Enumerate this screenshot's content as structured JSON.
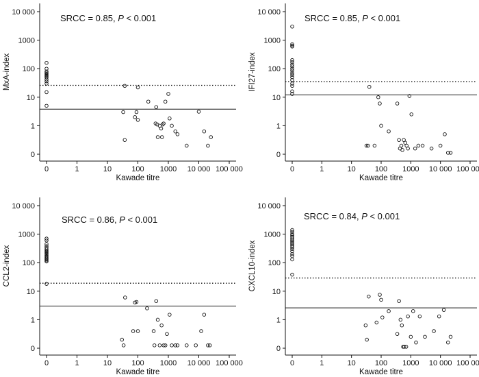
{
  "chart_data": [
    {
      "type": "scatter",
      "id": "mxa",
      "title": "",
      "xlabel": "Kawade titre",
      "ylabel": "MxA-index",
      "annotation": {
        "prefix": "SRCC = 0.85, ",
        "p_symbol": "P",
        "suffix": " < 0.001"
      },
      "x_ticks": [
        {
          "value": 0,
          "label": "0"
        },
        {
          "value": 1,
          "label": "1"
        },
        {
          "value": 10,
          "label": "10"
        },
        {
          "value": 100,
          "label": "100"
        },
        {
          "value": 1000,
          "label": "1000"
        },
        {
          "value": 10000,
          "label": "10 000"
        },
        {
          "value": 100000,
          "label": "100 000"
        }
      ],
      "y_ticks": [
        {
          "value": 0,
          "label": "0"
        },
        {
          "value": 1,
          "label": "1"
        },
        {
          "value": 10,
          "label": "10"
        },
        {
          "value": 100,
          "label": "100"
        },
        {
          "value": 1000,
          "label": "1000"
        },
        {
          "value": 10000,
          "label": "10 000"
        }
      ],
      "xlim": [
        0,
        100000
      ],
      "ylim": [
        0,
        10000
      ],
      "reference_lines": [
        {
          "style": "dotted",
          "y": 26
        },
        {
          "style": "solid",
          "y": 3.8
        }
      ],
      "points": [
        {
          "x": 0,
          "y": 160
        },
        {
          "x": 0,
          "y": 100
        },
        {
          "x": 0,
          "y": 80
        },
        {
          "x": 0,
          "y": 72
        },
        {
          "x": 0,
          "y": 66
        },
        {
          "x": 0,
          "y": 60
        },
        {
          "x": 0,
          "y": 55
        },
        {
          "x": 0,
          "y": 50
        },
        {
          "x": 0,
          "y": 42
        },
        {
          "x": 0,
          "y": 36
        },
        {
          "x": 0,
          "y": 30
        },
        {
          "x": 0,
          "y": 15
        },
        {
          "x": 0,
          "y": 5
        },
        {
          "x": 33,
          "y": 3
        },
        {
          "x": 37,
          "y": 25
        },
        {
          "x": 37,
          "y": 0.5
        },
        {
          "x": 80,
          "y": 2
        },
        {
          "x": 90,
          "y": 3
        },
        {
          "x": 100,
          "y": 22
        },
        {
          "x": 100,
          "y": 1.6
        },
        {
          "x": 220,
          "y": 7
        },
        {
          "x": 400,
          "y": 4.5
        },
        {
          "x": 380,
          "y": 1.2
        },
        {
          "x": 430,
          "y": 1.1
        },
        {
          "x": 450,
          "y": 0.6
        },
        {
          "x": 520,
          "y": 1
        },
        {
          "x": 580,
          "y": 0.9
        },
        {
          "x": 620,
          "y": 0.6
        },
        {
          "x": 650,
          "y": 1.1
        },
        {
          "x": 700,
          "y": 1.2
        },
        {
          "x": 800,
          "y": 7
        },
        {
          "x": 1000,
          "y": 13
        },
        {
          "x": 1100,
          "y": 1.8
        },
        {
          "x": 1300,
          "y": 1
        },
        {
          "x": 1700,
          "y": 0.8
        },
        {
          "x": 2000,
          "y": 0.7
        },
        {
          "x": 4000,
          "y": 0.3
        },
        {
          "x": 10000,
          "y": 3.1
        },
        {
          "x": 15000,
          "y": 0.8
        },
        {
          "x": 20000,
          "y": 0.3
        },
        {
          "x": 25000,
          "y": 0.6
        }
      ]
    },
    {
      "type": "scatter",
      "id": "ifi27",
      "title": "",
      "xlabel": "Kawade titre",
      "ylabel": "IFI27-index",
      "annotation": {
        "prefix": "SRCC = 0.85, ",
        "p_symbol": "P",
        "suffix": " < 0.001"
      },
      "x_ticks": [
        {
          "value": 0,
          "label": "0"
        },
        {
          "value": 1,
          "label": "1"
        },
        {
          "value": 10,
          "label": "10"
        },
        {
          "value": 100,
          "label": "100"
        },
        {
          "value": 1000,
          "label": "1000"
        },
        {
          "value": 10000,
          "label": "10 000"
        },
        {
          "value": 100000,
          "label": "100 000"
        }
      ],
      "y_ticks": [
        {
          "value": 0,
          "label": "0"
        },
        {
          "value": 1,
          "label": "1"
        },
        {
          "value": 10,
          "label": "10"
        },
        {
          "value": 100,
          "label": "100"
        },
        {
          "value": 1000,
          "label": "1000"
        },
        {
          "value": 10000,
          "label": "10 000"
        }
      ],
      "xlim": [
        0,
        100000
      ],
      "ylim": [
        0,
        10000
      ],
      "reference_lines": [
        {
          "style": "dotted",
          "y": 35
        },
        {
          "style": "solid",
          "y": 12
        }
      ],
      "points": [
        {
          "x": 0,
          "y": 3000
        },
        {
          "x": 0,
          "y": 720
        },
        {
          "x": 0,
          "y": 650
        },
        {
          "x": 0,
          "y": 600
        },
        {
          "x": 0,
          "y": 200
        },
        {
          "x": 0,
          "y": 170
        },
        {
          "x": 0,
          "y": 140
        },
        {
          "x": 0,
          "y": 120
        },
        {
          "x": 0,
          "y": 100
        },
        {
          "x": 0,
          "y": 85
        },
        {
          "x": 0,
          "y": 70
        },
        {
          "x": 0,
          "y": 60
        },
        {
          "x": 0,
          "y": 50
        },
        {
          "x": 0,
          "y": 40
        },
        {
          "x": 0,
          "y": 30
        },
        {
          "x": 0,
          "y": 25
        },
        {
          "x": 0,
          "y": 16
        },
        {
          "x": 0,
          "y": 13
        },
        {
          "x": 32,
          "y": 0.3
        },
        {
          "x": 36,
          "y": 0.3
        },
        {
          "x": 40,
          "y": 23
        },
        {
          "x": 60,
          "y": 0.3
        },
        {
          "x": 80,
          "y": 10
        },
        {
          "x": 90,
          "y": 6
        },
        {
          "x": 100,
          "y": 1
        },
        {
          "x": 180,
          "y": 0.8
        },
        {
          "x": 350,
          "y": 6
        },
        {
          "x": 400,
          "y": 0.5
        },
        {
          "x": 430,
          "y": 0.2
        },
        {
          "x": 480,
          "y": 0.3
        },
        {
          "x": 520,
          "y": 0.15
        },
        {
          "x": 580,
          "y": 0.5
        },
        {
          "x": 650,
          "y": 0.4
        },
        {
          "x": 720,
          "y": 0.3
        },
        {
          "x": 800,
          "y": 0.2
        },
        {
          "x": 900,
          "y": 11
        },
        {
          "x": 1050,
          "y": 2.5
        },
        {
          "x": 1400,
          "y": 0.2
        },
        {
          "x": 1800,
          "y": 0.3
        },
        {
          "x": 2500,
          "y": 0.3
        },
        {
          "x": 5000,
          "y": 0.2
        },
        {
          "x": 10000,
          "y": 0.3
        },
        {
          "x": 14000,
          "y": 0.7
        },
        {
          "x": 18000,
          "y": 0.05
        },
        {
          "x": 22000,
          "y": 0.05
        }
      ]
    },
    {
      "type": "scatter",
      "id": "ccl2",
      "title": "",
      "xlabel": "Kawade titre",
      "ylabel": "CCL2-index",
      "annotation": {
        "prefix": "SRCC = 0.86, ",
        "p_symbol": "P",
        "suffix": " < 0.001"
      },
      "x_ticks": [
        {
          "value": 0,
          "label": "0"
        },
        {
          "value": 1,
          "label": "1"
        },
        {
          "value": 10,
          "label": "10"
        },
        {
          "value": 100,
          "label": "100"
        },
        {
          "value": 1000,
          "label": "1000"
        },
        {
          "value": 10000,
          "label": "10 000"
        },
        {
          "value": 100000,
          "label": "100 000"
        }
      ],
      "y_ticks": [
        {
          "value": 0,
          "label": "0"
        },
        {
          "value": 1,
          "label": "1"
        },
        {
          "value": 10,
          "label": "10"
        },
        {
          "value": 100,
          "label": "100"
        },
        {
          "value": 1000,
          "label": "1000"
        },
        {
          "value": 10000,
          "label": "10 000"
        }
      ],
      "xlim": [
        0,
        100000
      ],
      "ylim": [
        0,
        10000
      ],
      "reference_lines": [
        {
          "style": "dotted",
          "y": 19
        },
        {
          "style": "solid",
          "y": 3
        }
      ],
      "points": [
        {
          "x": 0,
          "y": 700
        },
        {
          "x": 0,
          "y": 600
        },
        {
          "x": 0,
          "y": 450
        },
        {
          "x": 0,
          "y": 380
        },
        {
          "x": 0,
          "y": 330
        },
        {
          "x": 0,
          "y": 290
        },
        {
          "x": 0,
          "y": 260
        },
        {
          "x": 0,
          "y": 240
        },
        {
          "x": 0,
          "y": 220
        },
        {
          "x": 0,
          "y": 200
        },
        {
          "x": 0,
          "y": 180
        },
        {
          "x": 0,
          "y": 165
        },
        {
          "x": 0,
          "y": 150
        },
        {
          "x": 0,
          "y": 140
        },
        {
          "x": 0,
          "y": 130
        },
        {
          "x": 0,
          "y": 120
        },
        {
          "x": 0,
          "y": 110
        },
        {
          "x": 0,
          "y": 18
        },
        {
          "x": 30,
          "y": 0.3
        },
        {
          "x": 34,
          "y": 0.1
        },
        {
          "x": 38,
          "y": 6
        },
        {
          "x": 70,
          "y": 0.6
        },
        {
          "x": 80,
          "y": 4
        },
        {
          "x": 90,
          "y": 4.2
        },
        {
          "x": 100,
          "y": 0.6
        },
        {
          "x": 200,
          "y": 2.5
        },
        {
          "x": 330,
          "y": 0.6
        },
        {
          "x": 350,
          "y": 0.1
        },
        {
          "x": 400,
          "y": 4.5
        },
        {
          "x": 450,
          "y": 1
        },
        {
          "x": 520,
          "y": 0.1
        },
        {
          "x": 600,
          "y": 0.8
        },
        {
          "x": 700,
          "y": 0.1
        },
        {
          "x": 800,
          "y": 0.1
        },
        {
          "x": 900,
          "y": 0.5
        },
        {
          "x": 1100,
          "y": 1.5
        },
        {
          "x": 1300,
          "y": 0.1
        },
        {
          "x": 1700,
          "y": 0.1
        },
        {
          "x": 2000,
          "y": 0.1
        },
        {
          "x": 4000,
          "y": 0.1
        },
        {
          "x": 8000,
          "y": 0.1
        },
        {
          "x": 12000,
          "y": 0.6
        },
        {
          "x": 15000,
          "y": 1.5
        },
        {
          "x": 20000,
          "y": 0.1
        },
        {
          "x": 23000,
          "y": 0.1
        }
      ]
    },
    {
      "type": "scatter",
      "id": "cxcl10",
      "title": "",
      "xlabel": "Kawade titre",
      "ylabel": "CXCL10-index",
      "annotation": {
        "prefix": "SRCC = 0.84, ",
        "p_symbol": "P",
        "suffix": " < 0.001"
      },
      "x_ticks": [
        {
          "value": 0,
          "label": "0"
        },
        {
          "value": 1,
          "label": "1"
        },
        {
          "value": 10,
          "label": "10"
        },
        {
          "value": 100,
          "label": "100"
        },
        {
          "value": 1000,
          "label": "1000"
        },
        {
          "value": 10000,
          "label": "10 000"
        },
        {
          "value": 100000,
          "label": "100 000"
        }
      ],
      "y_ticks": [
        {
          "value": 0,
          "label": "0"
        },
        {
          "value": 1,
          "label": "1"
        },
        {
          "value": 10,
          "label": "10"
        },
        {
          "value": 100,
          "label": "100"
        },
        {
          "value": 1000,
          "label": "1000"
        },
        {
          "value": 10000,
          "label": "10 000"
        }
      ],
      "xlim": [
        0,
        100000
      ],
      "ylim": [
        0,
        10000
      ],
      "reference_lines": [
        {
          "style": "dotted",
          "y": 29
        },
        {
          "style": "solid",
          "y": 2.6
        }
      ],
      "points": [
        {
          "x": 0,
          "y": 1400
        },
        {
          "x": 0,
          "y": 1200
        },
        {
          "x": 0,
          "y": 1000
        },
        {
          "x": 0,
          "y": 900
        },
        {
          "x": 0,
          "y": 800
        },
        {
          "x": 0,
          "y": 700
        },
        {
          "x": 0,
          "y": 620
        },
        {
          "x": 0,
          "y": 560
        },
        {
          "x": 0,
          "y": 500
        },
        {
          "x": 0,
          "y": 450
        },
        {
          "x": 0,
          "y": 400
        },
        {
          "x": 0,
          "y": 350
        },
        {
          "x": 0,
          "y": 300
        },
        {
          "x": 0,
          "y": 250
        },
        {
          "x": 0,
          "y": 200
        },
        {
          "x": 0,
          "y": 170
        },
        {
          "x": 0,
          "y": 130
        },
        {
          "x": 0,
          "y": 38
        },
        {
          "x": 30,
          "y": 0.8
        },
        {
          "x": 33,
          "y": 0.3
        },
        {
          "x": 38,
          "y": 6.5
        },
        {
          "x": 70,
          "y": 0.9
        },
        {
          "x": 90,
          "y": 7.5
        },
        {
          "x": 100,
          "y": 5
        },
        {
          "x": 110,
          "y": 1.2
        },
        {
          "x": 180,
          "y": 2
        },
        {
          "x": 350,
          "y": 0.5
        },
        {
          "x": 400,
          "y": 4.5
        },
        {
          "x": 450,
          "y": 1
        },
        {
          "x": 500,
          "y": 0.8
        },
        {
          "x": 550,
          "y": 0.05
        },
        {
          "x": 600,
          "y": 0.05
        },
        {
          "x": 700,
          "y": 0.05
        },
        {
          "x": 800,
          "y": 1.3
        },
        {
          "x": 1000,
          "y": 0.4
        },
        {
          "x": 1200,
          "y": 2
        },
        {
          "x": 1500,
          "y": 0.2
        },
        {
          "x": 2000,
          "y": 1.3
        },
        {
          "x": 3000,
          "y": 0.4
        },
        {
          "x": 6000,
          "y": 0.6
        },
        {
          "x": 9000,
          "y": 1.3
        },
        {
          "x": 13000,
          "y": 2.2
        },
        {
          "x": 18000,
          "y": 0.2
        },
        {
          "x": 22000,
          "y": 0.4
        }
      ]
    }
  ]
}
